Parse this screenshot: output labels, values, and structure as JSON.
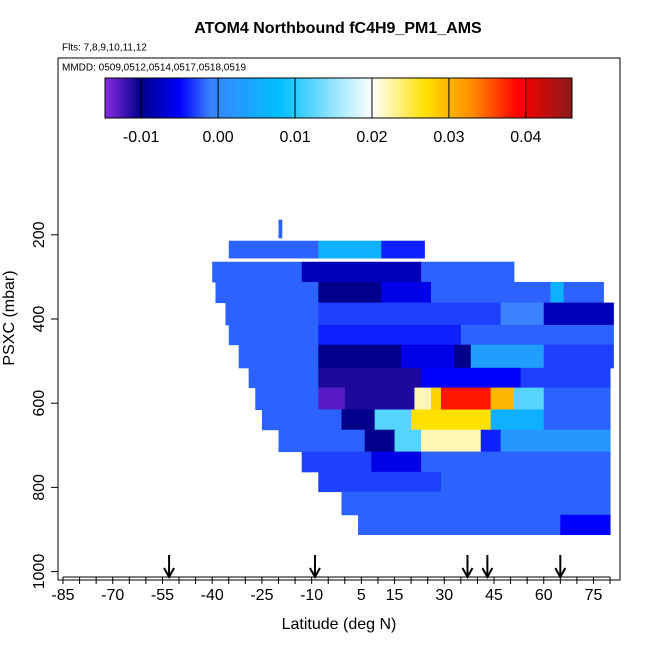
{
  "chart_data": {
    "type": "curtain",
    "title": "ATOM4 Northbound fC4H9_PM1_AMS",
    "subtitle": "Flts: 7,8,9,10,11,12",
    "annotation": "MMDD: 0509,0512,0514,0517,0518,0519",
    "xlabel": "Latitude (deg N)",
    "ylabel": "PSXC (mbar)",
    "xlim": [
      -86.5,
      83
    ],
    "ylim": [
      1020,
      -220
    ],
    "xticks": [
      -85,
      -70,
      -55,
      -40,
      -25,
      -10,
      5,
      15,
      30,
      45,
      60,
      75
    ],
    "xminorticks": [
      -80,
      -75,
      -65,
      -60,
      -50,
      -45,
      -35,
      -30,
      -20,
      -15,
      -5,
      0,
      10,
      20,
      25,
      35,
      40,
      50,
      55,
      65,
      70,
      80
    ],
    "yticks": [
      200,
      400,
      600,
      800,
      1000
    ],
    "colorbar_lim": [
      -0.0147,
      0.046
    ],
    "colorbar_ticks": [
      -0.01,
      {
        "value": 0,
        "label": "0.00"
      },
      0.01,
      0.02,
      0.03,
      0.04
    ],
    "colormap": [
      {
        "value": -0.0147,
        "color": "#8a2be2"
      },
      {
        "value": -0.01,
        "color": "#00008b"
      },
      {
        "value": -0.005,
        "color": "#0000ff"
      },
      {
        "value": -0.001,
        "color": "#3b82ff"
      },
      {
        "value": 0.008,
        "color": "#00bfff"
      },
      {
        "value": 0.02,
        "color": "#ffffff"
      },
      {
        "value": 0.027,
        "color": "#ffe000"
      },
      {
        "value": 0.033,
        "color": "#ff8c00"
      },
      {
        "value": 0.039,
        "color": "#ff0000"
      },
      {
        "value": 0.046,
        "color": "#8b1a1a"
      }
    ],
    "rows": [
      {
        "p": [
          164,
          207
        ],
        "cells": [
          [
            -20,
            -19,
            -0.002
          ]
        ]
      },
      {
        "p": [
          214,
          255
        ],
        "cells": [
          [
            -35,
            -8,
            -0.002
          ],
          [
            -8,
            11,
            0.006
          ],
          [
            11,
            24,
            -0.004
          ]
        ]
      },
      {
        "p": [
          264,
          312
        ],
        "cells": [
          [
            -40,
            -13,
            -0.002
          ],
          [
            -13,
            23,
            -0.008
          ],
          [
            23,
            51,
            -0.002
          ]
        ]
      },
      {
        "p": [
          312,
          361
        ],
        "cells": [
          [
            -39,
            -8,
            -0.002
          ],
          [
            -8,
            11,
            -0.01
          ],
          [
            11,
            26,
            -0.006
          ],
          [
            26,
            62,
            -0.002
          ],
          [
            62,
            66,
            0.006
          ],
          [
            66,
            78,
            -0.002
          ]
        ]
      },
      {
        "p": [
          361,
          414
        ],
        "cells": [
          [
            -36,
            -8,
            -0.002
          ],
          [
            -8,
            47,
            -0.003
          ],
          [
            47,
            60,
            -0.001
          ],
          [
            60,
            81,
            -0.008
          ]
        ]
      },
      {
        "p": [
          414,
          461
        ],
        "cells": [
          [
            -35,
            -8,
            -0.002
          ],
          [
            -8,
            35,
            -0.004
          ],
          [
            35,
            81,
            -0.002
          ]
        ]
      },
      {
        "p": [
          461,
          516
        ],
        "cells": [
          [
            -32,
            -8,
            -0.002
          ],
          [
            -8,
            17,
            -0.01
          ],
          [
            17,
            33,
            -0.006
          ],
          [
            33,
            38,
            -0.01
          ],
          [
            38,
            60,
            0.003
          ],
          [
            60,
            81,
            -0.003
          ]
        ]
      },
      {
        "p": [
          516,
          563
        ],
        "cells": [
          [
            -29,
            -8,
            -0.002
          ],
          [
            -8,
            23,
            -0.011
          ],
          [
            23,
            53,
            -0.005
          ],
          [
            53,
            80,
            -0.003
          ]
        ]
      },
      {
        "p": [
          563,
          615
        ],
        "cells": [
          [
            -27,
            -8,
            -0.002
          ],
          [
            -8,
            0,
            -0.013
          ],
          [
            0,
            21,
            -0.011
          ],
          [
            21,
            26,
            0.022
          ],
          [
            26,
            29,
            0.028
          ],
          [
            29,
            44,
            0.038
          ],
          [
            44,
            51,
            0.03
          ],
          [
            51,
            60,
            0.012
          ],
          [
            60,
            80,
            -0.002
          ]
        ]
      },
      {
        "p": [
          615,
          663
        ],
        "cells": [
          [
            -25,
            -1,
            -0.002
          ],
          [
            -1,
            9,
            -0.01
          ],
          [
            9,
            20,
            0.012
          ],
          [
            20,
            44,
            0.027
          ],
          [
            44,
            60,
            0.006
          ],
          [
            60,
            80,
            -0.002
          ]
        ]
      },
      {
        "p": [
          663,
          715
        ],
        "cells": [
          [
            -20,
            6,
            -0.002
          ],
          [
            6,
            15,
            -0.01
          ],
          [
            15,
            23,
            0.012
          ],
          [
            23,
            41,
            0.022
          ],
          [
            41,
            47,
            -0.004
          ],
          [
            47,
            80,
            0.002
          ]
        ]
      },
      {
        "p": [
          715,
          763
        ],
        "cells": [
          [
            -13,
            8,
            -0.003
          ],
          [
            8,
            23,
            -0.006
          ],
          [
            23,
            80,
            -0.002
          ]
        ]
      },
      {
        "p": [
          763,
          810
        ],
        "cells": [
          [
            -8,
            29,
            -0.003
          ],
          [
            29,
            80,
            -0.002
          ]
        ]
      },
      {
        "p": [
          810,
          865
        ],
        "cells": [
          [
            -1,
            80,
            -0.002
          ]
        ]
      },
      {
        "p": [
          865,
          912
        ],
        "cells": [
          [
            4,
            65,
            -0.002
          ],
          [
            65,
            80,
            -0.005
          ]
        ]
      }
    ],
    "arrows": [
      -53,
      -9,
      37,
      43,
      65
    ]
  }
}
